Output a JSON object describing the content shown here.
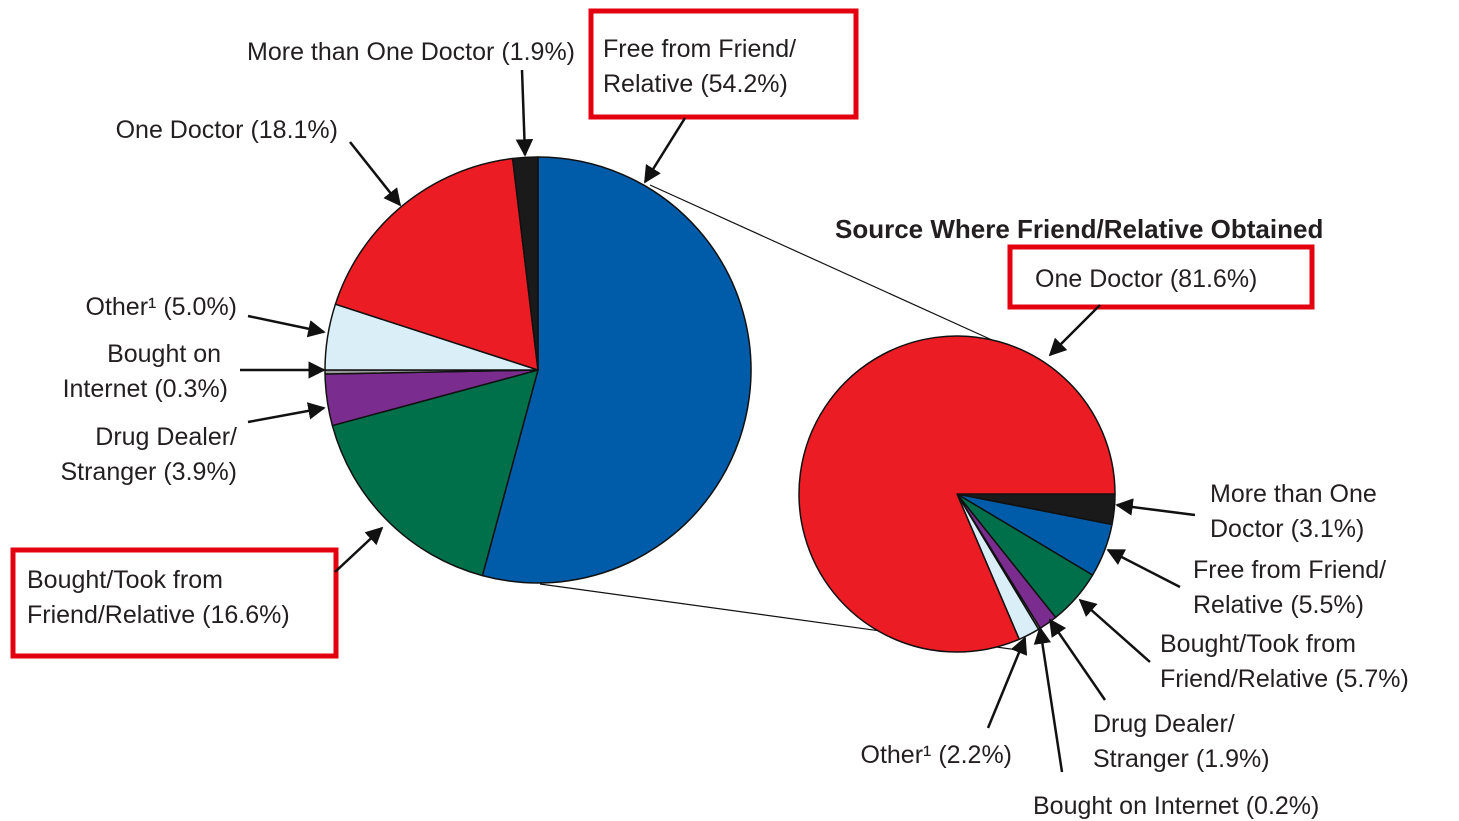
{
  "chart_data": [
    {
      "type": "pie",
      "categories": [
        "Free from Friend/Relative",
        "Bought/Took from Friend/Relative",
        "Drug Dealer/Stranger",
        "Bought on Internet",
        "Other¹",
        "One Doctor",
        "More than One Doctor"
      ],
      "values": [
        54.2,
        16.6,
        3.9,
        0.3,
        5.0,
        18.1,
        1.9
      ],
      "value_labels": [
        "(54.2%)",
        "(16.6%)",
        "(3.9%)",
        "(0.3%)",
        "(5.0%)",
        "(18.1%)",
        "(1.9%)"
      ],
      "colors": [
        "#005ba9",
        "#00704a",
        "#7b2c8f",
        "#9a9a9a",
        "#d9eef6",
        "#ec1c24",
        "#1a1a1a"
      ]
    },
    {
      "type": "pie",
      "title": "Source Where Friend/Relative Obtained",
      "categories": [
        "More than One Doctor",
        "Free from Friend/Relative",
        "Bought/Took from Friend/Relative",
        "Drug Dealer/Stranger",
        "Bought on Internet",
        "Other¹",
        "One Doctor"
      ],
      "values": [
        3.1,
        5.5,
        5.7,
        1.9,
        0.2,
        2.2,
        81.6
      ],
      "value_labels": [
        "(3.1%)",
        "(5.5%)",
        "(5.7%)",
        "(1.9%)",
        "(0.2%)",
        "(2.2%)",
        "(81.6%)"
      ],
      "colors": [
        "#1a1a1a",
        "#005ba9",
        "#00704a",
        "#7b2c8f",
        "#9a9a9a",
        "#d9eef6",
        "#ec1c24"
      ]
    }
  ]
}
